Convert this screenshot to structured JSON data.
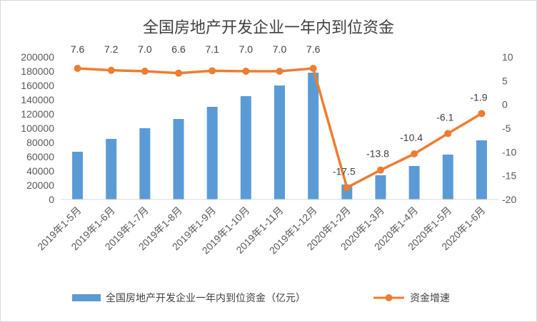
{
  "chart_data": {
    "type": "bar+line",
    "title": "全国房地产开发企业一年内到位资金",
    "categories": [
      "2019年1-5月",
      "2019年1-6月",
      "2019年1-7月",
      "2019年1-8月",
      "2019年1-9月",
      "2019年1-10月",
      "2019年1-11月",
      "2019年1-12月",
      "2020年1-2月",
      "2020年1-3月",
      "2020年1-4月",
      "2020年1-5月",
      "2020年1-6月"
    ],
    "series": [
      {
        "name": "全国房地产开发企业一年内到位资金（亿元）",
        "type": "bar",
        "axis": "left",
        "color": "#5B9BD5",
        "values": [
          67000,
          85000,
          100000,
          113000,
          130000,
          145000,
          160000,
          178000,
          21000,
          34000,
          47000,
          63000,
          83000
        ]
      },
      {
        "name": "资金增速",
        "type": "line",
        "axis": "right",
        "color": "#ED7D31",
        "values": [
          7.6,
          7.2,
          7.0,
          6.6,
          7.1,
          7.0,
          7.0,
          7.6,
          -17.5,
          -13.8,
          -10.4,
          -6.1,
          -1.9
        ],
        "labels": [
          "7.6",
          "7.2",
          "7.0",
          "6.6",
          "7.1",
          "7.0",
          "7.0",
          "7.6",
          "-17.5",
          "-13.8",
          "-10.4",
          "-6.1",
          "-1.9"
        ]
      }
    ],
    "y_left": {
      "min": 0,
      "max": 200000,
      "step": 20000,
      "ticks": [
        "0",
        "20000",
        "40000",
        "60000",
        "80000",
        "100000",
        "120000",
        "140000",
        "160000",
        "180000",
        "200000"
      ]
    },
    "y_right": {
      "min": -20,
      "max": 10,
      "step": 5,
      "ticks": [
        "-20",
        "-15",
        "-10",
        "-5",
        "0",
        "5",
        "10"
      ]
    },
    "grid": false,
    "legend": "bottom"
  }
}
